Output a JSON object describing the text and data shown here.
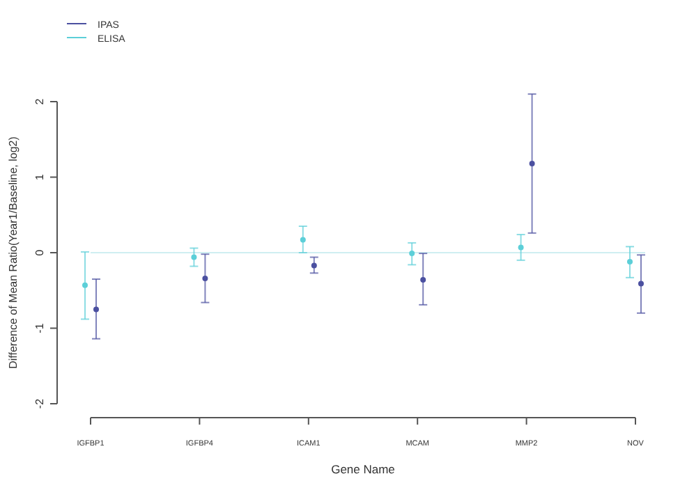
{
  "chart_data": {
    "type": "scatter",
    "xlabel": "Gene Name",
    "ylabel": "Difference of Mean Ratio(Year1/Baseline, log2)",
    "categories": [
      "IGFBP1",
      "IGFBP4",
      "ICAM1",
      "MCAM",
      "MMP2",
      "NOV"
    ],
    "series": [
      {
        "name": "IPAS",
        "color": "#4b50a0",
        "values": [
          -0.75,
          -0.34,
          -0.17,
          -0.36,
          1.18,
          -0.41
        ],
        "errors": [
          [
            -1.14,
            -0.35
          ],
          [
            -0.66,
            -0.02
          ],
          [
            -0.27,
            -0.06
          ],
          [
            -0.69,
            -0.01
          ],
          [
            0.26,
            2.1
          ],
          [
            -0.8,
            -0.03
          ]
        ]
      },
      {
        "name": "ELISA",
        "color": "#5ccfd8",
        "values": [
          -0.43,
          -0.06,
          0.17,
          -0.01,
          0.07,
          -0.12
        ],
        "errors": [
          [
            -0.88,
            0.01
          ],
          [
            -0.18,
            0.06
          ],
          [
            0,
            0.35
          ],
          [
            -0.16,
            0.13
          ],
          [
            -0.1,
            0.24
          ],
          [
            -0.33,
            0.08
          ]
        ]
      }
    ],
    "ylim": [
      -2,
      2
    ],
    "yticks": [
      -2,
      -1,
      0,
      1,
      2
    ],
    "ref_lines": [
      {
        "axis": "y",
        "value": 0,
        "color": "#cfeef1"
      }
    ],
    "legend": "top left",
    "marker": "circle",
    "grid": false
  }
}
